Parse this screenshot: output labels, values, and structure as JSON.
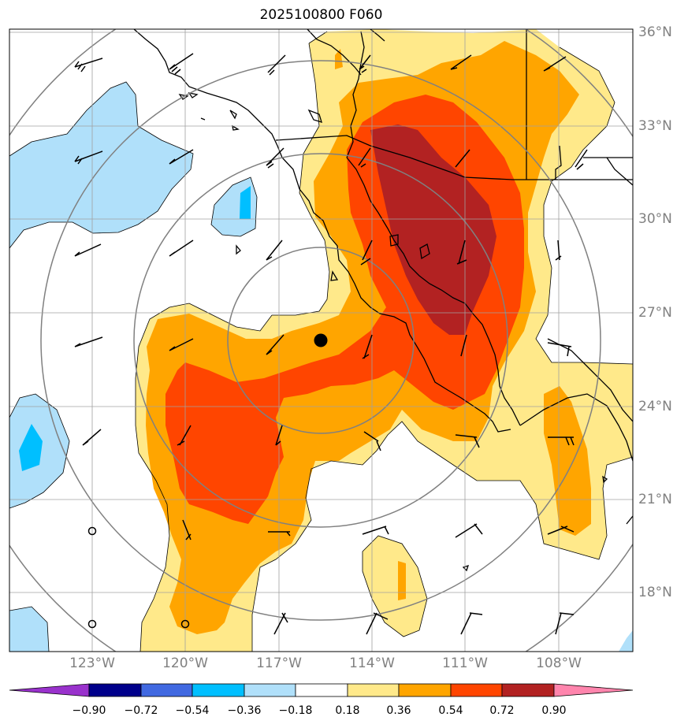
{
  "title": "2025100800 F060",
  "lat_labels": [
    "36°N",
    "33°N",
    "30°N",
    "27°N",
    "24°N",
    "21°N",
    "18°N"
  ],
  "lon_labels": [
    "123°W",
    "120°W",
    "117°W",
    "114°W",
    "111°W",
    "108°W"
  ],
  "colorbar": {
    "levels": [
      "−0.90",
      "−0.72",
      "−0.54",
      "−0.36",
      "−0.18",
      "0.18",
      "0.36",
      "0.54",
      "0.72",
      "0.90"
    ],
    "colors": [
      "#9932cc",
      "#00008b",
      "#4169e1",
      "#00bfff",
      "#b0e0fa",
      "#ffffff",
      "#ffe98a",
      "#ffa500",
      "#ff4500",
      "#b22222",
      "#ff85ad"
    ]
  },
  "fill_colors": {
    "pos_018": "#ffe98a",
    "pos_036": "#ffa500",
    "pos_054": "#ff4500",
    "pos_072": "#b22222",
    "neg_018": "#b0e0fa",
    "neg_036": "#00bfff"
  },
  "storm_center": {
    "lat": 26.1,
    "lon": -115.7
  }
}
